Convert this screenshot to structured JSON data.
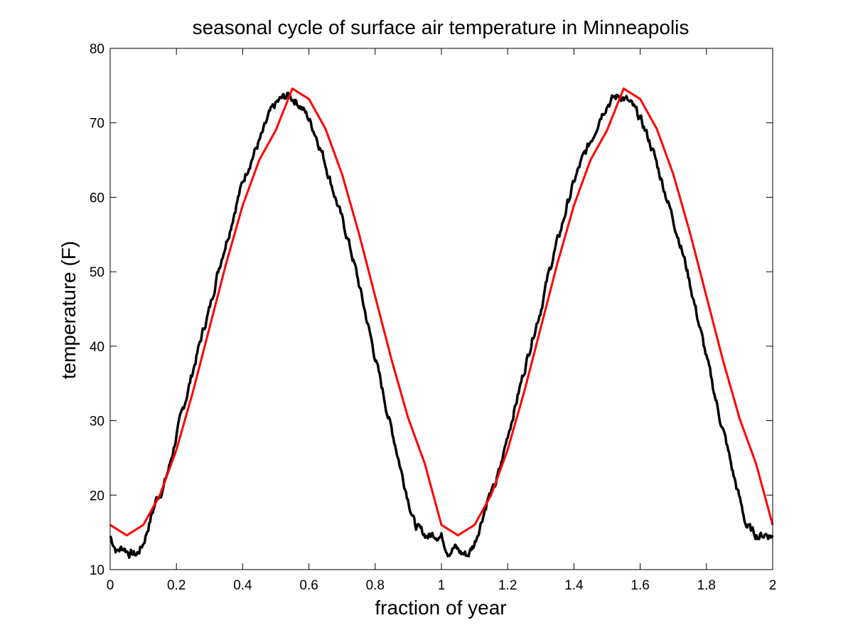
{
  "chart_data": {
    "type": "line",
    "title": "seasonal cycle of surface air temperature in Minneapolis",
    "xlabel": "fraction of year",
    "ylabel": "temperature (F)",
    "xlim": [
      0,
      2
    ],
    "ylim": [
      10,
      80
    ],
    "xticks": [
      0,
      0.2,
      0.4,
      0.6,
      0.8,
      1,
      1.2,
      1.4,
      1.6,
      1.8,
      2
    ],
    "xtick_labels": [
      "0",
      "0.2",
      "0.4",
      "0.6",
      "0.8",
      "1",
      "1.2",
      "1.4",
      "1.6",
      "1.8",
      "2"
    ],
    "yticks": [
      10,
      20,
      30,
      40,
      50,
      60,
      70,
      80
    ],
    "ytick_labels": [
      "10",
      "20",
      "30",
      "40",
      "50",
      "60",
      "70",
      "80"
    ],
    "grid": false,
    "legend": "none",
    "series": [
      {
        "color": "#000000",
        "style": "observed-noisy",
        "x": [
          0,
          0.02,
          0.04,
          0.06,
          0.08,
          0.1,
          0.12,
          0.14,
          0.16,
          0.18,
          0.2,
          0.22,
          0.24,
          0.26,
          0.28,
          0.3,
          0.32,
          0.34,
          0.36,
          0.38,
          0.4,
          0.42,
          0.44,
          0.46,
          0.48,
          0.5,
          0.52,
          0.54,
          0.56,
          0.58,
          0.6,
          0.62,
          0.64,
          0.66,
          0.68,
          0.7,
          0.72,
          0.74,
          0.76,
          0.78,
          0.8,
          0.82,
          0.84,
          0.86,
          0.88,
          0.9,
          0.92,
          0.94,
          0.96,
          0.98,
          1.0
        ],
        "y": [
          14.5,
          12.5,
          13.0,
          12.2,
          12.0,
          13.5,
          16.5,
          19.5,
          21.0,
          24.0,
          28.0,
          31.5,
          35.0,
          38.5,
          42.0,
          45.0,
          49.0,
          52.5,
          55.5,
          59.0,
          62.0,
          64.5,
          66.5,
          68.5,
          71.0,
          72.5,
          73.3,
          73.7,
          73.0,
          72.0,
          70.5,
          68.5,
          66.0,
          63.0,
          60.0,
          57.0,
          54.0,
          50.5,
          46.5,
          42.5,
          38.5,
          34.5,
          30.5,
          27.0,
          23.0,
          19.5,
          16.0,
          15.0,
          14.5,
          14.8,
          14.5
        ]
      },
      {
        "color": "#ff0000",
        "style": "sinusoidal-fit",
        "x": [
          0,
          0.05,
          0.1,
          0.15,
          0.2,
          0.25,
          0.3,
          0.35,
          0.4,
          0.45,
          0.5,
          0.55,
          0.6,
          0.65,
          0.7,
          0.75,
          0.8,
          0.85,
          0.9,
          0.95,
          1.0
        ],
        "y": [
          16.0,
          14.6,
          16.0,
          20.0,
          26.1,
          33.9,
          42.5,
          51.1,
          58.9,
          65.0,
          69.0,
          74.6,
          73.2,
          69.2,
          63.1,
          55.3,
          46.7,
          38.1,
          30.3,
          24.2,
          16.0
        ]
      }
    ]
  }
}
